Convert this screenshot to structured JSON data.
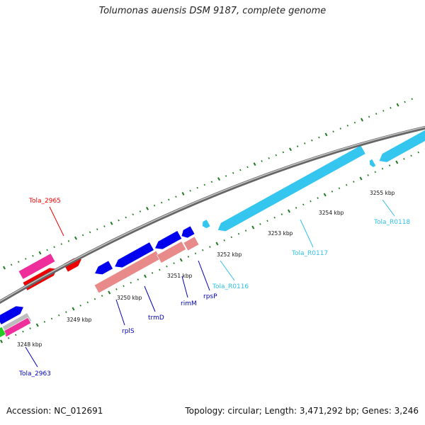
{
  "title": "Tolumonas auensis DSM 9187, complete genome",
  "accession_text": "Accession: NC_012691",
  "summary_text": "Topology: circular; Length: 3,471,292 bp; Genes: 3,246",
  "colors": {
    "backbone": "#8a8a8a",
    "tick": "#1f7a1f",
    "cds_blue": "#0000ee",
    "cds_red": "#ee0000",
    "cds_magenta": "#ee2e9b",
    "cds_salmon": "#e88a8a",
    "rrna_cyan": "#35c6f0",
    "cds_green": "#22cc22",
    "cds_gray": "#bdbdbd",
    "label_red": "#ee0000",
    "label_blue": "#0000bb",
    "label_cyan": "#30c0e8"
  },
  "kbp_labels": [
    "3248 kbp",
    "3249 kbp",
    "3250 kbp",
    "3251 kbp",
    "3252 kbp",
    "3253 kbp",
    "3254 kbp",
    "3255 kbp"
  ],
  "gene_labels": [
    {
      "name": "Tola_2965",
      "color": "label_red"
    },
    {
      "name": "Tola_2963",
      "color": "label_blue"
    },
    {
      "name": "rplS",
      "color": "label_blue"
    },
    {
      "name": "trmD",
      "color": "label_blue"
    },
    {
      "name": "rimM",
      "color": "label_blue"
    },
    {
      "name": "rpsP",
      "color": "label_blue"
    },
    {
      "name": "Tola_R0116",
      "color": "label_cyan"
    },
    {
      "name": "Tola_R0117",
      "color": "label_cyan"
    },
    {
      "name": "Tola_R0118",
      "color": "label_cyan"
    }
  ]
}
